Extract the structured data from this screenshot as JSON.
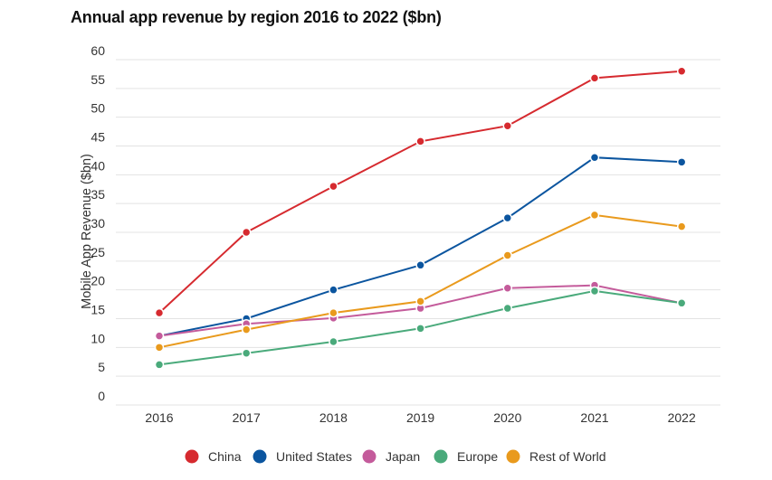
{
  "chart_data": {
    "type": "line",
    "title": "Annual app revenue by region 2016 to 2022 ($bn)",
    "xlabel": "",
    "ylabel": "Mobile App Revenue ($bn)",
    "ylim": [
      0,
      60
    ],
    "yticks": [
      0,
      5,
      10,
      15,
      20,
      25,
      30,
      35,
      40,
      45,
      50,
      55,
      60
    ],
    "categories": [
      "2016",
      "2017",
      "2018",
      "2019",
      "2020",
      "2021",
      "2022"
    ],
    "grid": true,
    "legend_position": "bottom",
    "series": [
      {
        "name": "China",
        "color": "#d62a2f",
        "values": [
          16,
          30,
          38,
          45.8,
          48.5,
          56.8,
          58
        ]
      },
      {
        "name": "United States",
        "color": "#0b559f",
        "values": [
          12,
          15,
          20,
          24.3,
          32.5,
          43,
          42.2
        ]
      },
      {
        "name": "Japan",
        "color": "#c45b9b",
        "values": [
          12,
          14.1,
          15.1,
          16.8,
          20.3,
          20.8,
          17.7
        ]
      },
      {
        "name": "Europe",
        "color": "#4aaa7b",
        "values": [
          7,
          9,
          11,
          13.3,
          16.8,
          19.8,
          17.7
        ]
      },
      {
        "name": "Rest of World",
        "color": "#e99a1d",
        "values": [
          10,
          13.1,
          16,
          18,
          26,
          33,
          31
        ]
      }
    ]
  }
}
